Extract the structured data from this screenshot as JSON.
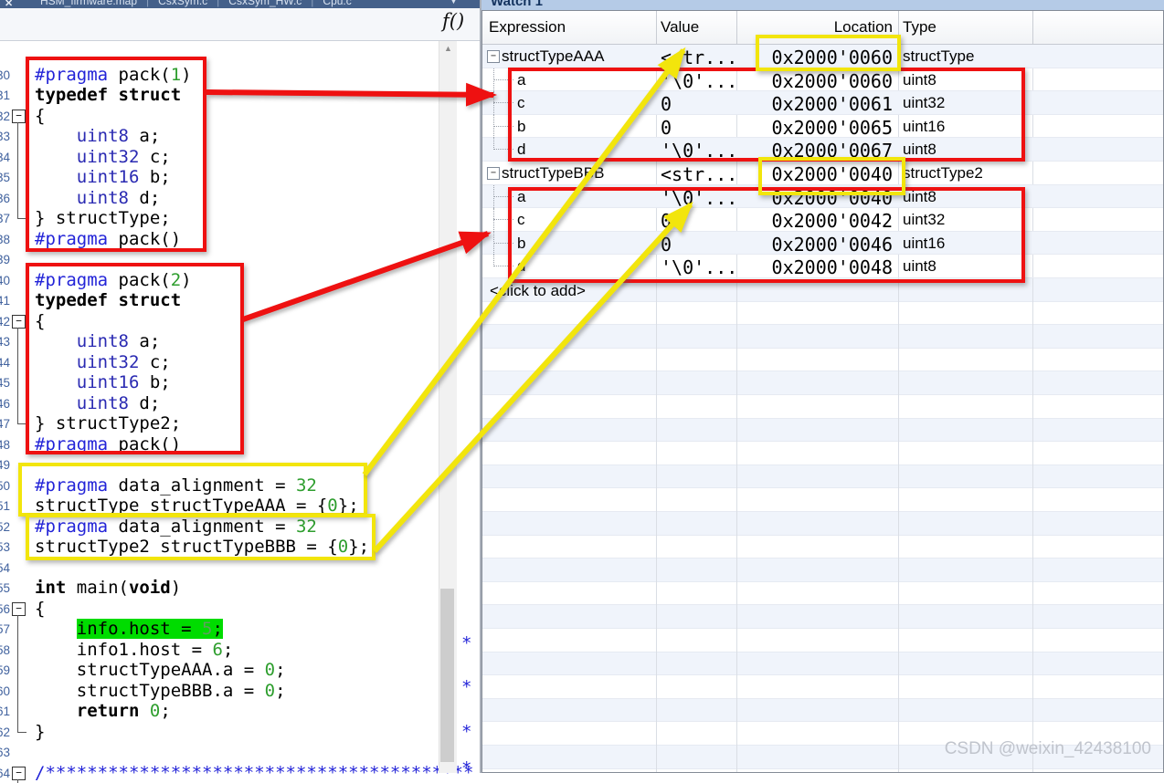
{
  "editor": {
    "tab_bar": {
      "close_icon": "✕",
      "overflow_icon": "▼",
      "tabs": [
        "HSM_firmware.map",
        "CsxSym.c",
        "CsxSym_HW.c",
        "Cpu.c"
      ]
    },
    "toolbar": {
      "function_list_label": "f()"
    },
    "scrollbar": {
      "up_icon": "▲"
    },
    "margin_marks": [
      "*",
      "*",
      "*",
      "*"
    ],
    "code": {
      "first_line_number": 30,
      "lines": [
        {
          "n": 30,
          "fold": "",
          "tokens": [
            [
              "pr",
              "#pragma"
            ],
            [
              "pl",
              " pack("
            ],
            [
              "nu",
              "1"
            ],
            [
              "pl",
              ")"
            ]
          ]
        },
        {
          "n": 31,
          "fold": "",
          "tokens": [
            [
              "kw",
              "typedef struct"
            ]
          ]
        },
        {
          "n": 32,
          "fold": "open",
          "tokens": [
            [
              "pl",
              "{"
            ]
          ]
        },
        {
          "n": 33,
          "fold": "line",
          "tokens": [
            [
              "pl",
              "    "
            ],
            [
              "ty",
              "uint8"
            ],
            [
              "pl",
              " a;"
            ]
          ]
        },
        {
          "n": 34,
          "fold": "line",
          "tokens": [
            [
              "pl",
              "    "
            ],
            [
              "ty",
              "uint32"
            ],
            [
              "pl",
              " c;"
            ]
          ]
        },
        {
          "n": 35,
          "fold": "line",
          "tokens": [
            [
              "pl",
              "    "
            ],
            [
              "ty",
              "uint16"
            ],
            [
              "pl",
              " b;"
            ]
          ]
        },
        {
          "n": 36,
          "fold": "line",
          "tokens": [
            [
              "pl",
              "    "
            ],
            [
              "ty",
              "uint8"
            ],
            [
              "pl",
              " d;"
            ]
          ]
        },
        {
          "n": 37,
          "fold": "end",
          "tokens": [
            [
              "pl",
              "} structType;"
            ]
          ]
        },
        {
          "n": 38,
          "fold": "",
          "tokens": [
            [
              "pr",
              "#pragma"
            ],
            [
              "pl",
              " pack()"
            ]
          ]
        },
        {
          "n": 39,
          "fold": "",
          "tokens": []
        },
        {
          "n": 40,
          "fold": "",
          "tokens": [
            [
              "pr",
              "#pragma"
            ],
            [
              "pl",
              " pack("
            ],
            [
              "nu",
              "2"
            ],
            [
              "pl",
              ")"
            ]
          ]
        },
        {
          "n": 41,
          "fold": "",
          "tokens": [
            [
              "kw",
              "typedef struct"
            ]
          ]
        },
        {
          "n": 42,
          "fold": "open",
          "tokens": [
            [
              "pl",
              "{"
            ]
          ]
        },
        {
          "n": 43,
          "fold": "line",
          "tokens": [
            [
              "pl",
              "    "
            ],
            [
              "ty",
              "uint8"
            ],
            [
              "pl",
              " a;"
            ]
          ]
        },
        {
          "n": 44,
          "fold": "line",
          "tokens": [
            [
              "pl",
              "    "
            ],
            [
              "ty",
              "uint32"
            ],
            [
              "pl",
              " c;"
            ]
          ]
        },
        {
          "n": 45,
          "fold": "line",
          "tokens": [
            [
              "pl",
              "    "
            ],
            [
              "ty",
              "uint16"
            ],
            [
              "pl",
              " b;"
            ]
          ]
        },
        {
          "n": 46,
          "fold": "line",
          "tokens": [
            [
              "pl",
              "    "
            ],
            [
              "ty",
              "uint8"
            ],
            [
              "pl",
              " d;"
            ]
          ]
        },
        {
          "n": 47,
          "fold": "end",
          "tokens": [
            [
              "pl",
              "} structType2;"
            ]
          ]
        },
        {
          "n": 48,
          "fold": "",
          "tokens": [
            [
              "pr",
              "#pragma"
            ],
            [
              "pl",
              " pack()"
            ]
          ]
        },
        {
          "n": 49,
          "fold": "",
          "tokens": []
        },
        {
          "n": 50,
          "fold": "",
          "tokens": [
            [
              "pr",
              "#pragma"
            ],
            [
              "pl",
              " data_alignment = "
            ],
            [
              "nu",
              "32"
            ]
          ]
        },
        {
          "n": 51,
          "fold": "",
          "tokens": [
            [
              "pl",
              "structType structTypeAAA = {"
            ],
            [
              "nu",
              "0"
            ],
            [
              "pl",
              "};"
            ]
          ]
        },
        {
          "n": 52,
          "fold": "",
          "tokens": [
            [
              "pr",
              "#pragma"
            ],
            [
              "pl",
              " data_alignment = "
            ],
            [
              "nu",
              "32"
            ]
          ]
        },
        {
          "n": 53,
          "fold": "",
          "tokens": [
            [
              "pl",
              "structType2 structTypeBBB = {"
            ],
            [
              "nu",
              "0"
            ],
            [
              "pl",
              "};"
            ]
          ]
        },
        {
          "n": 54,
          "fold": "",
          "tokens": []
        },
        {
          "n": 55,
          "fold": "",
          "tokens": [
            [
              "kw",
              "int"
            ],
            [
              "pl",
              " main("
            ],
            [
              "kw",
              "void"
            ],
            [
              "pl",
              ")"
            ]
          ]
        },
        {
          "n": 56,
          "fold": "open",
          "tokens": [
            [
              "pl",
              "{"
            ]
          ]
        },
        {
          "n": 57,
          "fold": "line",
          "tokens": [
            [
              "pl",
              "    "
            ],
            [
              "hlp",
              "info.host = "
            ],
            [
              "hln",
              "5"
            ],
            [
              "hlp",
              ";"
            ]
          ]
        },
        {
          "n": 58,
          "fold": "line",
          "tokens": [
            [
              "pl",
              "    info1.host = "
            ],
            [
              "nu",
              "6"
            ],
            [
              "pl",
              ";"
            ]
          ]
        },
        {
          "n": 59,
          "fold": "line",
          "tokens": [
            [
              "pl",
              "    structTypeAAA.a = "
            ],
            [
              "nu",
              "0"
            ],
            [
              "pl",
              ";"
            ]
          ]
        },
        {
          "n": 60,
          "fold": "line",
          "tokens": [
            [
              "pl",
              "    structTypeBBB.a = "
            ],
            [
              "nu",
              "0"
            ],
            [
              "pl",
              ";"
            ]
          ]
        },
        {
          "n": 61,
          "fold": "line",
          "tokens": [
            [
              "pl",
              "    "
            ],
            [
              "kw",
              "return"
            ],
            [
              "pl",
              " "
            ],
            [
              "nu",
              "0"
            ],
            [
              "pl",
              ";"
            ]
          ]
        },
        {
          "n": 62,
          "fold": "end",
          "tokens": [
            [
              "pl",
              "}"
            ]
          ]
        },
        {
          "n": 63,
          "fold": "",
          "tokens": []
        },
        {
          "n": 64,
          "fold": "open",
          "tokens": [
            [
              "pr",
              "/*****************************************"
            ]
          ]
        }
      ]
    }
  },
  "watch": {
    "title": "Watch 1",
    "columns": [
      "Expression",
      "Value",
      "Location",
      "Type"
    ],
    "expand_icon": "−",
    "rows": [
      {
        "expr": "structTypeAAA",
        "level": 0,
        "value": "<str...",
        "loc": "0x2000'0060",
        "type": "structType"
      },
      {
        "expr": "a",
        "level": 1,
        "value": "'\\0'...",
        "loc": "0x2000'0060",
        "type": "uint8"
      },
      {
        "expr": "c",
        "level": 1,
        "value": "0",
        "loc": "0x2000'0061",
        "type": "uint32"
      },
      {
        "expr": "b",
        "level": 1,
        "value": "0",
        "loc": "0x2000'0065",
        "type": "uint16"
      },
      {
        "expr": "d",
        "level": 1,
        "last": true,
        "value": "'\\0'...",
        "loc": "0x2000'0067",
        "type": "uint8"
      },
      {
        "expr": "structTypeBBB",
        "level": 0,
        "value": "<str...",
        "loc": "0x2000'0040",
        "type": "structType2"
      },
      {
        "expr": "a",
        "level": 1,
        "value": "'\\0'...",
        "loc": "0x2000'0040",
        "type": "uint8"
      },
      {
        "expr": "c",
        "level": 1,
        "value": "0",
        "loc": "0x2000'0042",
        "type": "uint32"
      },
      {
        "expr": "b",
        "level": 1,
        "value": "0",
        "loc": "0x2000'0046",
        "type": "uint16"
      },
      {
        "expr": "d",
        "level": 1,
        "last": true,
        "value": "'\\0'...",
        "loc": "0x2000'0048",
        "type": "uint8"
      }
    ],
    "add_row_label": "<click to add>"
  },
  "syntax_colors": {
    "pragma": "#2324d8",
    "type": "#2a2ab2",
    "keyword": "#000000",
    "number": "#2e9e2e",
    "highlight_bg": "#00dc00",
    "line_number": "#41629e"
  },
  "annotation_colors": {
    "red": "#ee1111",
    "yellow": "#f2e50c"
  },
  "watermark": "CSDN @weixin_42438100"
}
